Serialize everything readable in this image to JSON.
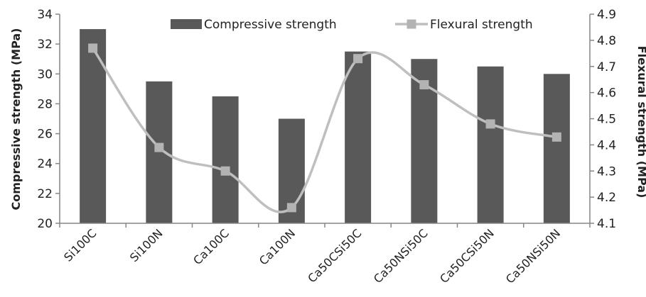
{
  "chart_data": {
    "type": "bar+line",
    "categories": [
      "Si100C",
      "Si100N",
      "Ca100C",
      "Ca100N",
      "Ca50CSi50C",
      "Ca50NSi50C",
      "Ca50CSi50N",
      "Ca50NSi50N"
    ],
    "series": [
      {
        "name": "Compressive strength",
        "type": "bar",
        "axis": "left",
        "color": "#595959",
        "values": [
          33.0,
          29.5,
          28.5,
          27.0,
          31.5,
          31.0,
          30.5,
          30.0
        ]
      },
      {
        "name": "Flexural strength",
        "type": "line",
        "axis": "right",
        "color": "#bfbfbf",
        "marker": "square",
        "smooth": true,
        "values": [
          4.77,
          4.39,
          4.3,
          4.16,
          4.73,
          4.63,
          4.48,
          4.43
        ]
      }
    ],
    "ylabel": "Compressive strength (MPa)",
    "y2label": "Flexural strength (MPa)",
    "ylim": [
      20,
      34
    ],
    "yticks": [
      "20",
      "22",
      "24",
      "26",
      "28",
      "30",
      "32",
      "34"
    ],
    "y2lim": [
      4.1,
      4.9
    ],
    "y2ticks": [
      "4.1",
      "4.2",
      "4.3",
      "4.4",
      "4.5",
      "4.6",
      "4.7",
      "4.8",
      "4.9"
    ],
    "grid": false,
    "legend_position": "top"
  }
}
